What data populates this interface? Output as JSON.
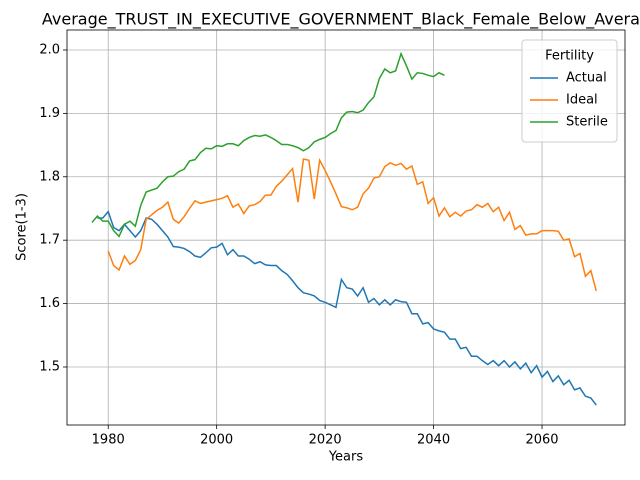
{
  "chart_data": {
    "type": "line",
    "title": "Average_TRUST_IN_EXECUTIVE_GOVERNMENT_Black_Female_Below_Averag",
    "xlabel": "Years",
    "ylabel": "Score(1-3)",
    "legend_title": "Fertility",
    "legend": "upper right",
    "grid": true,
    "xlim": [
      1972.4,
      2075.3
    ],
    "ylim": [
      1.4085,
      2.0315
    ],
    "xticks": [
      1980,
      2000,
      2020,
      2040,
      2060
    ],
    "yticks": [
      1.5,
      1.6,
      1.7,
      1.8,
      1.9,
      {
        "value": 2,
        "label": "2.0"
      }
    ],
    "x": [
      1977,
      1978,
      1979,
      1980,
      1981,
      1982,
      1983,
      1984,
      1985,
      1986,
      1987,
      1988,
      1989,
      1990,
      1991,
      1992,
      1993,
      1994,
      1995,
      1996,
      1997,
      1998,
      1999,
      2000,
      2001,
      2002,
      2003,
      2004,
      2005,
      2006,
      2007,
      2008,
      2009,
      2010,
      2011,
      2012,
      2013,
      2014,
      2015,
      2016,
      2017,
      2018,
      2019,
      2020,
      2021,
      2022,
      2023,
      2024,
      2025,
      2026,
      2027,
      2028,
      2029,
      2030,
      2031,
      2032,
      2033,
      2034,
      2035,
      2036,
      2037,
      2038,
      2039,
      2040,
      2041,
      2042,
      2043,
      2044,
      2045,
      2046,
      2047,
      2048,
      2049,
      2050,
      2051,
      2052,
      2053,
      2054,
      2055,
      2056,
      2057,
      2058,
      2059,
      2060,
      2061,
      2062,
      2063,
      2064,
      2065,
      2066,
      2067,
      2068,
      2069,
      2070
    ],
    "series": [
      {
        "name": "Actual",
        "color": "#1f77b4",
        "values": [
          null,
          1.735,
          1.735,
          1.745,
          1.72,
          1.715,
          1.725,
          1.715,
          1.705,
          1.715,
          1.735,
          1.733,
          1.725,
          1.715,
          1.705,
          1.69,
          1.689,
          1.687,
          1.682,
          1.675,
          1.673,
          1.68,
          1.688,
          1.689,
          1.695,
          1.677,
          1.685,
          1.675,
          1.675,
          1.67,
          1.663,
          1.666,
          1.661,
          1.66,
          1.66,
          1.652,
          1.646,
          1.636,
          1.625,
          1.617,
          1.615,
          1.612,
          1.605,
          1.602,
          1.598,
          1.594,
          1.638,
          1.625,
          1.623,
          1.612,
          1.625,
          1.602,
          1.608,
          1.598,
          1.606,
          1.598,
          1.606,
          1.603,
          1.602,
          1.584,
          1.584,
          1.568,
          1.57,
          1.56,
          1.557,
          1.555,
          1.544,
          1.544,
          1.529,
          1.531,
          1.517,
          1.517,
          1.51,
          1.504,
          1.51,
          1.502,
          1.51,
          1.5,
          1.508,
          1.497,
          1.506,
          1.491,
          1.502,
          1.484,
          1.493,
          1.477,
          1.486,
          1.472,
          1.479,
          1.464,
          1.467,
          1.454,
          1.451,
          1.44
        ]
      },
      {
        "name": "Ideal",
        "color": "#ff7f0e",
        "values": [
          null,
          null,
          null,
          1.683,
          1.66,
          1.653,
          1.675,
          1.662,
          1.668,
          1.685,
          1.733,
          1.74,
          1.747,
          1.752,
          1.76,
          1.733,
          1.727,
          1.737,
          1.75,
          1.762,
          1.758,
          1.76,
          1.762,
          1.764,
          1.766,
          1.77,
          1.752,
          1.757,
          1.742,
          1.754,
          1.756,
          1.761,
          1.771,
          1.771,
          1.785,
          1.793,
          1.803,
          1.813,
          1.76,
          1.828,
          1.826,
          1.765,
          1.826,
          1.81,
          1.792,
          1.773,
          1.753,
          1.751,
          1.748,
          1.752,
          1.773,
          1.782,
          1.798,
          1.8,
          1.816,
          1.822,
          1.818,
          1.821,
          1.812,
          1.817,
          1.788,
          1.792,
          1.758,
          1.767,
          1.738,
          1.751,
          1.737,
          1.744,
          1.738,
          1.746,
          1.748,
          1.756,
          1.752,
          1.758,
          1.745,
          1.752,
          1.731,
          1.744,
          1.717,
          1.723,
          1.708,
          1.71,
          1.71,
          1.715,
          1.715,
          1.715,
          1.714,
          1.7,
          1.702,
          1.674,
          1.679,
          1.643,
          1.652,
          1.62
        ]
      },
      {
        "name": "Sterile",
        "color": "#2ca02c",
        "values": [
          1.728,
          1.738,
          1.73,
          1.73,
          1.715,
          1.706,
          1.725,
          1.73,
          1.722,
          1.755,
          1.776,
          1.779,
          1.782,
          1.792,
          1.8,
          1.801,
          1.808,
          1.812,
          1.825,
          1.827,
          1.838,
          1.845,
          1.844,
          1.849,
          1.848,
          1.852,
          1.852,
          1.849,
          1.857,
          1.862,
          1.865,
          1.864,
          1.866,
          1.862,
          1.857,
          1.851,
          1.851,
          1.849,
          1.846,
          1.841,
          1.846,
          1.855,
          1.859,
          1.862,
          1.868,
          1.873,
          1.893,
          1.902,
          1.903,
          1.901,
          1.905,
          1.917,
          1.926,
          1.955,
          1.97,
          1.964,
          1.967,
          1.994,
          1.975,
          1.954,
          1.964,
          1.963,
          1.96,
          1.958,
          1.964,
          1.96,
          null,
          null,
          null,
          null,
          null,
          null,
          null,
          null,
          null,
          null,
          null,
          null,
          null,
          null,
          null,
          null,
          null,
          null,
          null,
          null,
          null,
          null,
          null,
          null,
          null,
          null,
          null,
          null
        ]
      }
    ]
  }
}
